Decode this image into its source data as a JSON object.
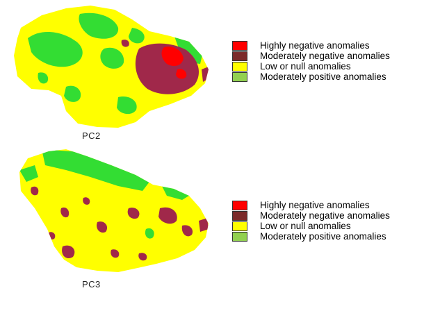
{
  "maps": [
    {
      "caption": "PC2",
      "legend": [
        {
          "label": "Highly negative anomalies",
          "color": "#ff0000"
        },
        {
          "label": "Moderately negative anomalies",
          "color": "#7b2a2a"
        },
        {
          "label": "Low or null anomalies",
          "color": "#ffff00"
        },
        {
          "label": "Moderately positive anomalies",
          "color": "#92d050"
        }
      ]
    },
    {
      "caption": "PC3",
      "legend": [
        {
          "label": "Highly negative anomalies",
          "color": "#ff0000"
        },
        {
          "label": "Moderately negative anomalies",
          "color": "#7b2a2a"
        },
        {
          "label": "Low or null anomalies",
          "color": "#ffff00"
        },
        {
          "label": "Moderately positive anomalies",
          "color": "#92d050"
        }
      ]
    }
  ],
  "colors": {
    "land": "#ffff00",
    "positive": "#33dd33",
    "moderate_negative": "#a0284a",
    "high_negative": "#ff0000"
  }
}
